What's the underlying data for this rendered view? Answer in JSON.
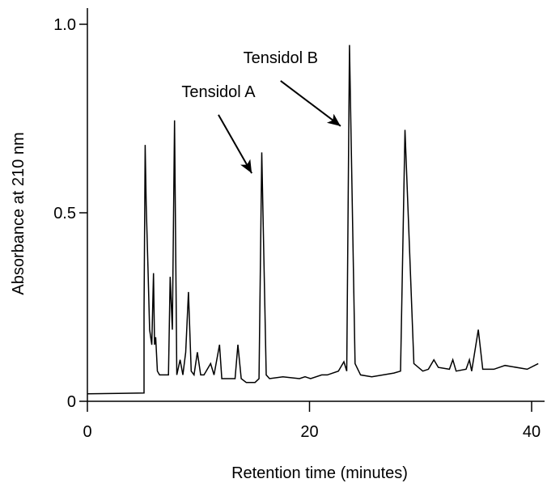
{
  "chart_data": {
    "type": "line",
    "title": "",
    "xlabel": "Retention time (minutes)",
    "ylabel": "Absorbance at 210 nm",
    "xlim": [
      0,
      41
    ],
    "ylim": [
      0,
      1.0
    ],
    "x_ticks": [
      0,
      20,
      40
    ],
    "x_tick_labels": [
      "0",
      "20",
      "40"
    ],
    "y_ticks": [
      0,
      0.5,
      1.0
    ],
    "y_tick_labels": [
      "0",
      "0.5",
      "1.0"
    ],
    "grid": false,
    "legend": "none",
    "line_color": "#000000",
    "series": [
      {
        "x": [
          0,
          2.8,
          5.1,
          5.1,
          5.2,
          5.3,
          5.45,
          5.6,
          5.8,
          5.95,
          6.05,
          6.15,
          6.3,
          6.5,
          7.3,
          7.45,
          7.65,
          7.85,
          8.05,
          8.35,
          8.6,
          8.85,
          9.1,
          9.35,
          9.6,
          9.9,
          10.2,
          10.5,
          11.1,
          11.4,
          11.9,
          12.1,
          13.3,
          13.55,
          13.85,
          14.3,
          15.1,
          15.45,
          15.7,
          16.1,
          16.4,
          17.6,
          19.1,
          19.6,
          20.1,
          21.1,
          21.6,
          22.6,
          23.1,
          23.35,
          23.6,
          24.1,
          24.6,
          25.6,
          27.6,
          28.2,
          28.6,
          29.4,
          30.2,
          30.7,
          31.2,
          31.6,
          32.6,
          32.9,
          33.2,
          34.1,
          34.4,
          34.6,
          35.2,
          35.6,
          36.6,
          37.6,
          39.6,
          40.6
        ],
        "values": [
          0.02,
          0.021,
          0.022,
          0.235,
          0.68,
          0.52,
          0.36,
          0.19,
          0.15,
          0.34,
          0.15,
          0.17,
          0.08,
          0.07,
          0.07,
          0.33,
          0.19,
          0.745,
          0.07,
          0.11,
          0.07,
          0.13,
          0.29,
          0.08,
          0.07,
          0.13,
          0.07,
          0.07,
          0.1,
          0.07,
          0.15,
          0.06,
          0.06,
          0.15,
          0.06,
          0.05,
          0.05,
          0.06,
          0.66,
          0.07,
          0.06,
          0.065,
          0.06,
          0.065,
          0.06,
          0.07,
          0.07,
          0.08,
          0.105,
          0.08,
          0.945,
          0.1,
          0.07,
          0.065,
          0.075,
          0.08,
          0.72,
          0.1,
          0.08,
          0.085,
          0.11,
          0.09,
          0.085,
          0.11,
          0.08,
          0.085,
          0.11,
          0.08,
          0.19,
          0.085,
          0.085,
          0.095,
          0.085,
          0.1
        ]
      }
    ],
    "annotations": [
      {
        "text": "Tensidol A",
        "target_x": 14.8,
        "target_y": 0.605,
        "from_x": 11.8,
        "from_y": 0.76,
        "label_position": "above-left"
      },
      {
        "text": "Tensidol B",
        "target_x": 22.8,
        "target_y": 0.73,
        "from_x": 17.4,
        "from_y": 0.85,
        "label_position": "above-left"
      }
    ]
  }
}
